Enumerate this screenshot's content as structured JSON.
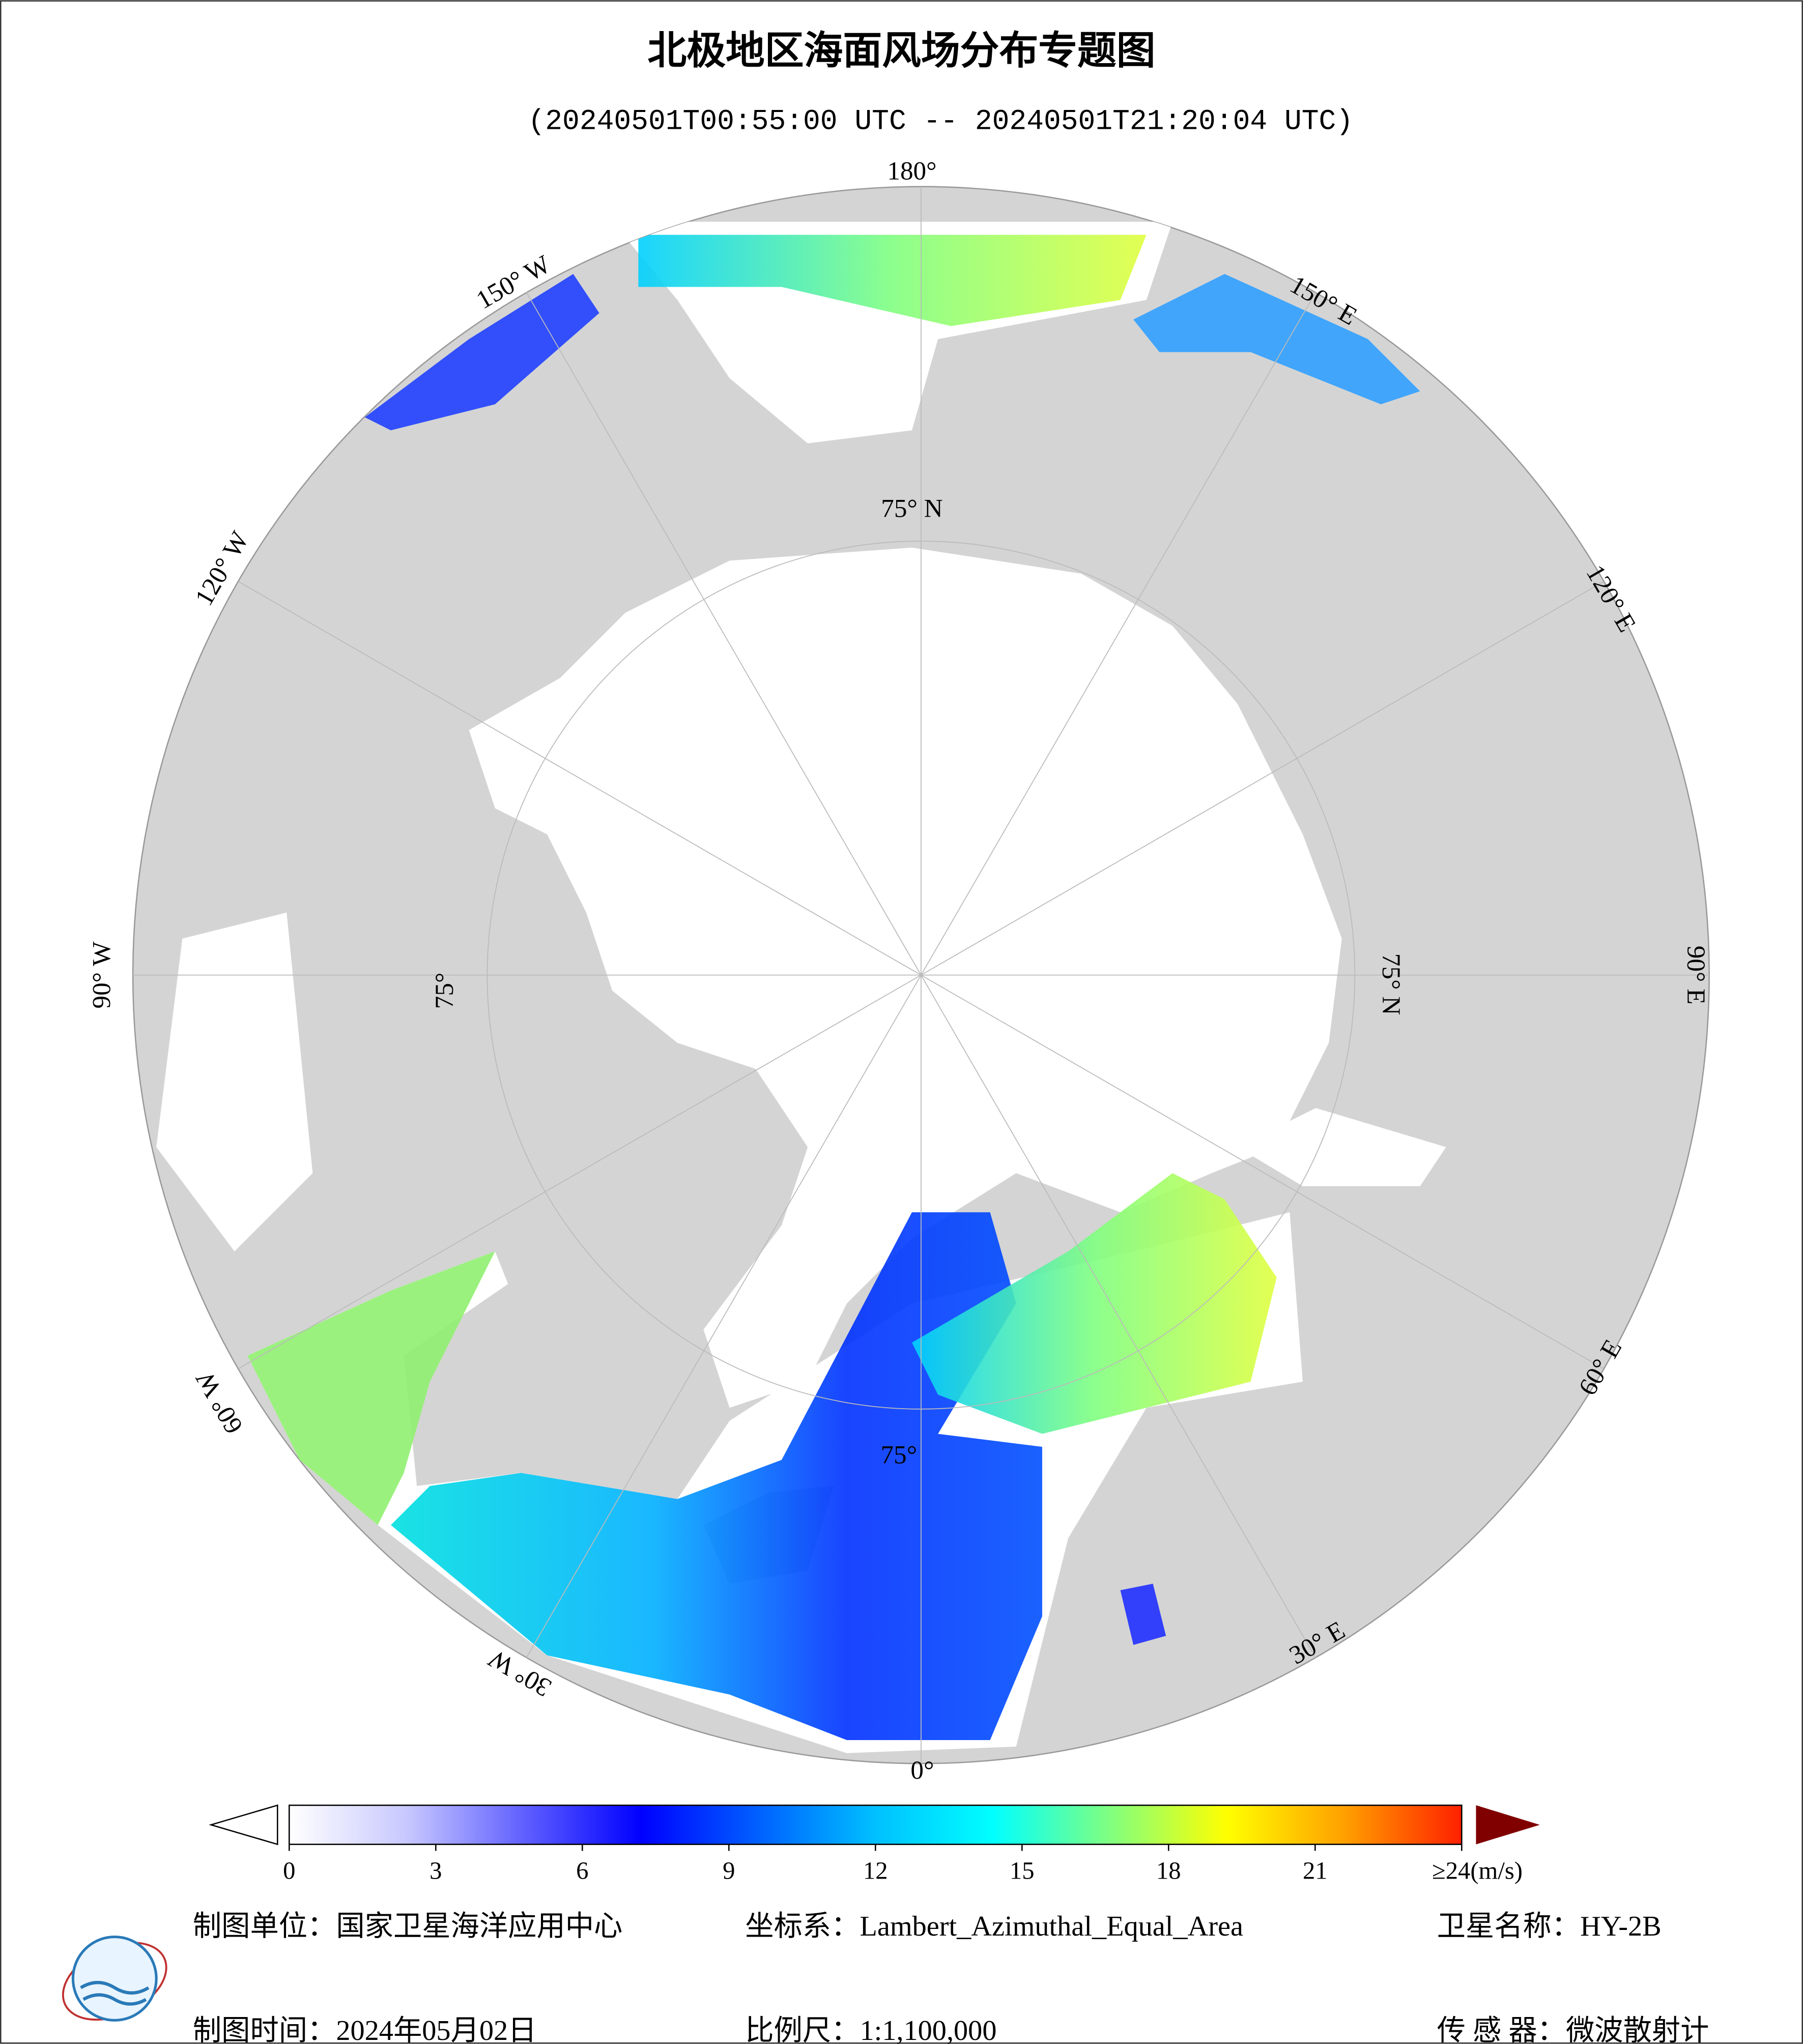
{
  "header": {
    "title": "北极地区海面风场分布专题图",
    "subtitle": "(20240501T00:55:00 UTC -- 20240501T21:20:04 UTC)"
  },
  "map": {
    "lon_labels": [
      "180°",
      "150° W",
      "120° W",
      "90° W",
      "60° W",
      "30° W",
      "0°",
      "30° E",
      "60° E",
      "90° E",
      "120° E",
      "150° E"
    ],
    "lat_labels": [
      "75° N",
      "75° N",
      "75°",
      "75°"
    ]
  },
  "colorbar": {
    "lim": [
      0,
      24
    ],
    "ticks": [
      0,
      3,
      6,
      9,
      12,
      15,
      18,
      21,
      {
        "value": 24,
        "label": "≥24(m/s)"
      }
    ],
    "colors": [
      "#ffffff",
      "#c8c8ff",
      "#6060ff",
      "#0000ff",
      "#0060ff",
      "#00c0ff",
      "#00ffff",
      "#80ff80",
      "#ffff00",
      "#ffa000",
      "#ff2000",
      "#800000"
    ]
  },
  "footer": {
    "items": [
      "制图单位：国家卫星海洋应用中心",
      "坐标系：Lambert_Azimuthal_Equal_Area",
      "卫星名称：HY-2B",
      "制图时间：2024年05月02日",
      "比例尺：1:1,100,000",
      "传 感 器：微波散射计"
    ]
  }
}
